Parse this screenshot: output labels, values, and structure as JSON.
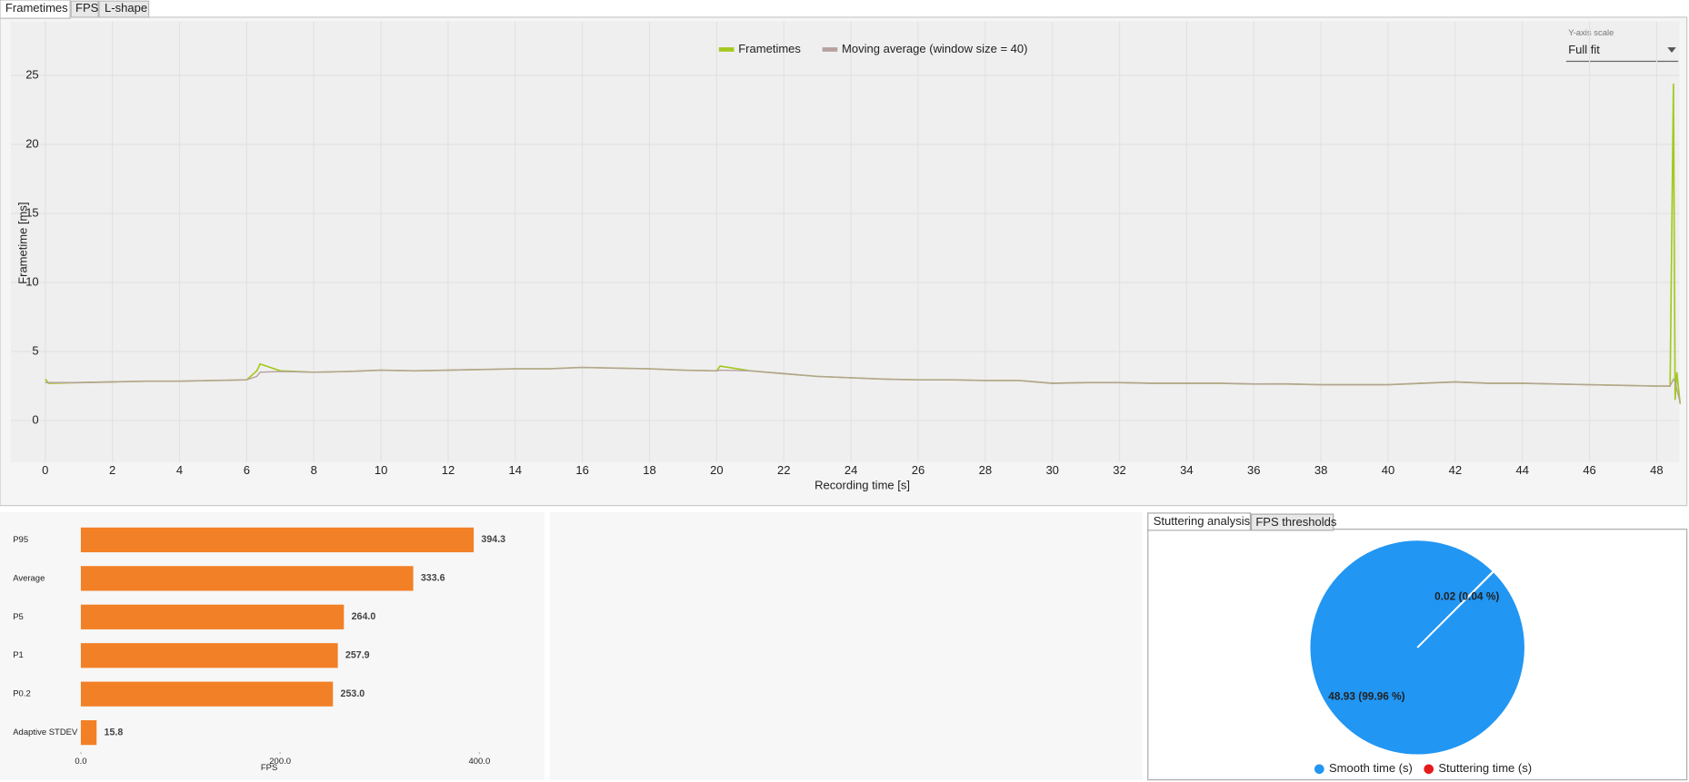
{
  "tabs": [
    "Frametimes",
    "FPS",
    "L-shape"
  ],
  "y_axis_scale": {
    "label": "Y-axis scale",
    "value": "Full fit"
  },
  "bottom_tabs": [
    "Stuttering analysis",
    "FPS thresholds"
  ],
  "chart_data": [
    {
      "type": "line",
      "x_label": "Recording time [s]",
      "y_label": "Frametime [ms]",
      "x": [
        0,
        0.1,
        1,
        2,
        3,
        4,
        5,
        6,
        6.3,
        6.4,
        7,
        8,
        9,
        10,
        11,
        12,
        13,
        14,
        15,
        16,
        17,
        18,
        19,
        20,
        20.1,
        21,
        22,
        22.5,
        23,
        24,
        25,
        26,
        27,
        28,
        29,
        30,
        31,
        32,
        33,
        34,
        35,
        36,
        37,
        38,
        39,
        40,
        41,
        42,
        43,
        44,
        45,
        46,
        47,
        48,
        48.4,
        48.5,
        48.55,
        48.6,
        48.7
      ],
      "series": [
        {
          "name": "Frametimes",
          "color": "#a3c91e",
          "values": [
            3.0,
            2.7,
            2.75,
            2.8,
            2.85,
            2.85,
            2.9,
            2.95,
            3.6,
            4.1,
            3.6,
            3.5,
            3.55,
            3.65,
            3.6,
            3.65,
            3.7,
            3.75,
            3.75,
            3.85,
            3.8,
            3.75,
            3.65,
            3.6,
            3.95,
            3.6,
            3.4,
            3.3,
            3.2,
            3.1,
            3.0,
            2.95,
            2.95,
            2.9,
            2.9,
            2.7,
            2.75,
            2.75,
            2.7,
            2.7,
            2.7,
            2.65,
            2.65,
            2.6,
            2.6,
            2.6,
            2.7,
            2.8,
            2.7,
            2.7,
            2.65,
            2.6,
            2.55,
            2.5,
            2.5,
            24.4,
            1.5,
            3.5,
            1.2
          ]
        },
        {
          "name": "Moving average (window size = 40)",
          "color": "#b5a19f",
          "values": [
            2.75,
            2.75,
            2.75,
            2.8,
            2.85,
            2.85,
            2.9,
            2.95,
            3.2,
            3.5,
            3.55,
            3.5,
            3.55,
            3.65,
            3.6,
            3.65,
            3.7,
            3.75,
            3.75,
            3.85,
            3.8,
            3.75,
            3.65,
            3.6,
            3.65,
            3.6,
            3.4,
            3.3,
            3.2,
            3.1,
            3.0,
            2.95,
            2.95,
            2.9,
            2.9,
            2.7,
            2.75,
            2.75,
            2.7,
            2.7,
            2.7,
            2.65,
            2.65,
            2.6,
            2.6,
            2.6,
            2.7,
            2.8,
            2.7,
            2.7,
            2.65,
            2.6,
            2.55,
            2.5,
            2.5,
            3.0,
            2.8,
            2.3,
            1.3
          ]
        }
      ],
      "xlim": [
        0,
        48.7
      ],
      "ylim": [
        -3,
        28.9
      ],
      "xticks": [
        0,
        2,
        4,
        6,
        8,
        10,
        12,
        14,
        16,
        18,
        20,
        22,
        24,
        26,
        28,
        30,
        32,
        34,
        36,
        38,
        40,
        42,
        44,
        46,
        48
      ],
      "yticks": [
        0,
        5,
        10,
        15,
        20,
        25
      ],
      "grid": true,
      "legend": "top"
    },
    {
      "type": "bar",
      "orientation": "horizontal",
      "x_label": "FPS",
      "categories": [
        "P95",
        "Average",
        "P5",
        "P1",
        "P0.2",
        "Adaptive STDEV"
      ],
      "values": [
        394.3,
        333.6,
        264.0,
        257.9,
        253.0,
        15.8
      ],
      "value_labels": [
        "394.3",
        "333.6",
        "264.0",
        "257.9",
        "253.0",
        "15.8"
      ],
      "color": "#f28026",
      "xlim": [
        0,
        450
      ],
      "xticks": [
        {
          "value": 0,
          "label": "0.0"
        },
        {
          "value": 200,
          "label": "200.0"
        },
        {
          "value": 400,
          "label": "400.0"
        }
      ]
    },
    {
      "type": "pie",
      "categories": [
        "Smooth time (s)",
        "Stuttering time (s)"
      ],
      "values": [
        48.93,
        0.02
      ],
      "value_labels": [
        "48.93 (99.96 %)",
        "0.02 (0.04 %)"
      ],
      "colors": [
        "#2196f3",
        "#e51b1b"
      ],
      "legend": "bottom"
    }
  ]
}
